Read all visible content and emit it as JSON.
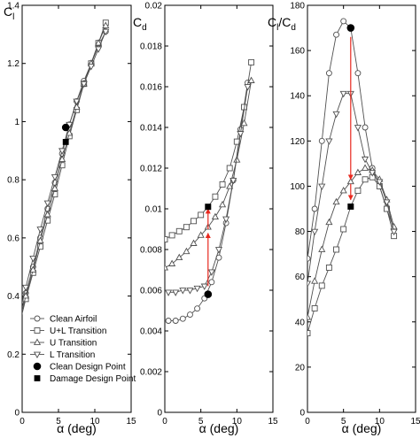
{
  "chart_data": [
    {
      "type": "line",
      "ylabel": "C",
      "ylabel_sub": "l",
      "xlabel": "α (deg)",
      "xlim": [
        0,
        15
      ],
      "ylim": [
        0,
        1.4
      ],
      "xticks": [
        0,
        5,
        10,
        15
      ],
      "yticks": [
        0,
        0.2,
        0.4,
        0.6,
        0.8,
        1,
        1.2,
        1.4
      ],
      "ytick_labels": [
        "0",
        "0.2",
        "0.4",
        "0.6",
        "0.8",
        "1",
        "1.2",
        "1.4"
      ],
      "series": [
        {
          "name": "Clean Airfoil",
          "marker": "circle",
          "x": [
            -0.5,
            0.5,
            1.5,
            2.5,
            3.5,
            4.5,
            5.5,
            6.5,
            7.5,
            8.5,
            9.5,
            10.5,
            11.5
          ],
          "y": [
            0.31,
            0.41,
            0.5,
            0.6,
            0.7,
            0.79,
            0.89,
            0.99,
            1.07,
            1.14,
            1.2,
            1.26,
            1.31
          ]
        },
        {
          "name": "U+L Transition",
          "marker": "square",
          "x": [
            -0.5,
            0.5,
            1.5,
            2.5,
            3.5,
            4.5,
            5.5,
            6.5,
            7.5,
            8.5,
            9.5,
            10.5,
            11.5
          ],
          "y": [
            0.29,
            0.39,
            0.48,
            0.57,
            0.66,
            0.75,
            0.85,
            0.95,
            1.04,
            1.13,
            1.2,
            1.27,
            1.34
          ]
        },
        {
          "name": "U Transition",
          "marker": "triangle-up",
          "x": [
            -0.5,
            0.5,
            1.5,
            2.5,
            3.5,
            4.5,
            5.5,
            6.5,
            7.5,
            8.5,
            9.5,
            10.5,
            11.5
          ],
          "y": [
            0.3,
            0.4,
            0.49,
            0.59,
            0.68,
            0.77,
            0.87,
            0.96,
            1.05,
            1.13,
            1.2,
            1.27,
            1.33
          ]
        },
        {
          "name": "L Transition",
          "marker": "triangle-down",
          "x": [
            -0.5,
            0.5,
            1.5,
            2.5,
            3.5,
            4.5,
            5.5,
            6.5,
            7.5,
            8.5,
            9.5,
            10.5,
            11.5
          ],
          "y": [
            0.33,
            0.43,
            0.53,
            0.63,
            0.72,
            0.81,
            0.9,
            0.99,
            1.07,
            1.13,
            1.19,
            1.25,
            1.31
          ]
        }
      ],
      "design_points": {
        "clean": {
          "name": "Clean Design Point",
          "marker": "filled-circle",
          "x": 6,
          "y": 0.98
        },
        "damage": {
          "name": "Damage Design Point",
          "marker": "filled-square",
          "x": 6,
          "y": 0.93
        }
      },
      "legend_entries": [
        {
          "label": "Clean Airfoil",
          "marker": "circle"
        },
        {
          "label": "U+L Transition",
          "marker": "square"
        },
        {
          "label": "U Transition",
          "marker": "triangle-up"
        },
        {
          "label": "L Transition",
          "marker": "triangle-down"
        },
        {
          "label": "Clean Design Point",
          "marker": "filled-circle"
        },
        {
          "label": "Damage Design Point",
          "marker": "filled-square"
        }
      ],
      "legend_position": "bottom-right"
    },
    {
      "type": "line",
      "ylabel": "C",
      "ylabel_sub": "d",
      "xlabel": "α (deg)",
      "xlim": [
        0,
        15
      ],
      "ylim": [
        0,
        0.02
      ],
      "xticks": [
        0,
        5,
        10,
        15
      ],
      "yticks": [
        0,
        0.002,
        0.004,
        0.006,
        0.008,
        0.01,
        0.012,
        0.014,
        0.016,
        0.018,
        0.02
      ],
      "ytick_labels": [
        "0",
        "0.002",
        "0.004",
        "0.006",
        "0.008",
        "0.01",
        "0.012",
        "0.014",
        "0.016",
        "0.018",
        "0.02"
      ],
      "series": [
        {
          "name": "Clean Airfoil",
          "marker": "circle",
          "x": [
            0.5,
            1.5,
            2.5,
            3.5,
            4.5,
            5.5,
            6.5,
            7.5,
            8.5,
            9.5,
            10.5,
            11.5
          ],
          "y": [
            0.0045,
            0.0045,
            0.0046,
            0.0048,
            0.0051,
            0.0056,
            0.0064,
            0.0076,
            0.0093,
            0.0114,
            0.0139,
            0.0162
          ]
        },
        {
          "name": "U+L Transition",
          "marker": "square",
          "x": [
            0,
            1,
            2,
            3,
            4,
            5,
            6,
            7,
            8,
            9,
            10,
            11,
            12
          ],
          "y": [
            0.0085,
            0.0087,
            0.0089,
            0.0091,
            0.0094,
            0.0097,
            0.0101,
            0.0106,
            0.0112,
            0.012,
            0.0133,
            0.015,
            0.0172
          ]
        },
        {
          "name": "U Transition",
          "marker": "triangle-up",
          "x": [
            0,
            1,
            2,
            3,
            4,
            5,
            6,
            7,
            8,
            9,
            10,
            11,
            12
          ],
          "y": [
            0.0071,
            0.0073,
            0.0076,
            0.0079,
            0.0083,
            0.0087,
            0.0091,
            0.0096,
            0.0102,
            0.0111,
            0.0124,
            0.0142,
            0.0163
          ]
        },
        {
          "name": "L Transition",
          "marker": "triangle-down",
          "x": [
            0.5,
            1.5,
            2.5,
            3.5,
            4.5,
            5.5,
            6.5,
            7.5,
            8.5,
            9.5,
            10.5,
            11.5
          ],
          "y": [
            0.0059,
            0.0059,
            0.006,
            0.006,
            0.0061,
            0.0062,
            0.0069,
            0.008,
            0.0095,
            0.0114,
            0.0137,
            0.016
          ]
        }
      ],
      "design_points": {
        "clean": {
          "name": "Clean Design Point",
          "marker": "filled-circle",
          "x": 6,
          "y": 0.0058
        },
        "damage": {
          "name": "Damage Design Point",
          "marker": "filled-square",
          "x": 6,
          "y": 0.0101
        }
      },
      "arrows": [
        {
          "x": 6,
          "from": 0.0062,
          "to": 0.0088
        },
        {
          "x": 6,
          "from": 0.009,
          "to": 0.01
        }
      ]
    },
    {
      "type": "line",
      "ylabel": "C",
      "ylabel_sub": "l",
      "ylabel_tail": "/C",
      "ylabel_tail_sub": "d",
      "xlabel": "α (deg)",
      "xlim": [
        0,
        15
      ],
      "ylim": [
        0,
        180
      ],
      "xticks": [
        0,
        5,
        10,
        15
      ],
      "yticks": [
        0,
        20,
        40,
        60,
        80,
        100,
        120,
        140,
        160,
        180
      ],
      "ytick_labels": [
        "0",
        "20",
        "40",
        "60",
        "80",
        "100",
        "120",
        "140",
        "160",
        "180"
      ],
      "series": [
        {
          "name": "Clean Airfoil",
          "marker": "circle",
          "x": [
            0,
            1,
            2,
            3,
            4,
            5,
            6,
            7,
            8,
            9,
            10,
            11,
            12
          ],
          "y": [
            68,
            90,
            120,
            150,
            167,
            173,
            170,
            150,
            126,
            108,
            100,
            90,
            81
          ]
        },
        {
          "name": "U+L Transition",
          "marker": "square",
          "x": [
            0,
            1,
            2,
            3,
            4,
            5,
            6,
            7,
            8,
            9,
            10,
            11,
            12
          ],
          "y": [
            35,
            46,
            56,
            64,
            72,
            81,
            91,
            98,
            103,
            104,
            100,
            90,
            78
          ]
        },
        {
          "name": "U Transition",
          "marker": "triangle-up",
          "x": [
            0,
            1,
            2,
            3,
            4,
            5,
            6,
            7,
            8,
            9,
            10,
            11,
            12
          ],
          "y": [
            42,
            58,
            72,
            84,
            93,
            98,
            102,
            106,
            108,
            107,
            103,
            94,
            82
          ]
        },
        {
          "name": "L Transition",
          "marker": "triangle-down",
          "x": [
            0,
            1,
            2,
            3,
            4,
            5,
            6,
            7,
            8,
            9,
            10,
            11,
            12
          ],
          "y": [
            57,
            80,
            100,
            120,
            132,
            141,
            141,
            126,
            112,
            106,
            102,
            93,
            80
          ]
        }
      ],
      "design_points": {
        "clean": {
          "name": "Clean Design Point",
          "marker": "filled-circle",
          "x": 6,
          "y": 170
        },
        "damage": {
          "name": "Damage Design Point",
          "marker": "filled-square",
          "x": 6,
          "y": 91
        }
      },
      "arrows": [
        {
          "x": 6,
          "from": 166,
          "to": 103
        },
        {
          "x": 6,
          "from": 101,
          "to": 94
        }
      ]
    }
  ],
  "colors": {
    "line": "#505050",
    "axis": "#000000",
    "arrow": "#e8281e"
  }
}
